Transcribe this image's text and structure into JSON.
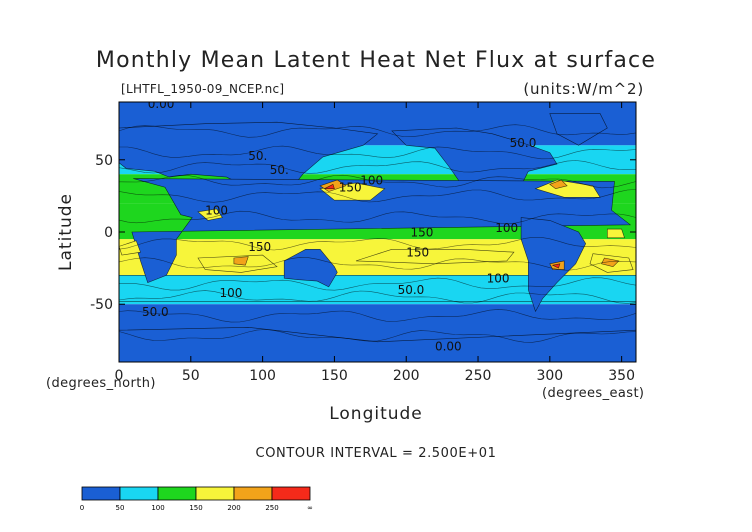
{
  "chart_data": {
    "type": "heatmap",
    "title": "Monthly Mean Latent Heat Net Flux at surface",
    "subtitle": "[LHTFL_1950-09_NCEP.nc]",
    "units": "(units:W/m^2)",
    "xlabel": "Longitude",
    "ylabel": "Latitude",
    "x_unit_label": "(degrees_east)",
    "y_unit_label": "(degrees_north)",
    "xlim": [
      0,
      360
    ],
    "ylim": [
      -90,
      90
    ],
    "x_ticks": [
      0,
      50,
      100,
      150,
      200,
      250,
      300,
      350
    ],
    "y_ticks": [
      -50,
      0,
      50
    ],
    "contour_interval": "CONTOUR INTERVAL = 2.500E+01",
    "contour_labels": [
      {
        "text": "0.00",
        "x": 20,
        "y": 86
      },
      {
        "text": "50.",
        "x": 90,
        "y": 50
      },
      {
        "text": "50.",
        "x": 105,
        "y": 40
      },
      {
        "text": "100",
        "x": 168,
        "y": 33
      },
      {
        "text": "150",
        "x": 153,
        "y": 28
      },
      {
        "text": "100",
        "x": 60,
        "y": 12
      },
      {
        "text": "150",
        "x": 90,
        "y": -13
      },
      {
        "text": "150",
        "x": 200,
        "y": -17
      },
      {
        "text": "150",
        "x": 203,
        "y": -3
      },
      {
        "text": "100",
        "x": 262,
        "y": 0
      },
      {
        "text": "100",
        "x": 256,
        "y": -35
      },
      {
        "text": "100",
        "x": 70,
        "y": -45
      },
      {
        "text": "50.0",
        "x": 194,
        "y": -43
      },
      {
        "text": "50.0",
        "x": 16,
        "y": -58
      },
      {
        "text": "50.0",
        "x": 272,
        "y": 59
      },
      {
        "text": "0.00",
        "x": 220,
        "y": -82
      }
    ],
    "colorbar": {
      "levels": [
        "0",
        "50",
        "100",
        "150",
        "200",
        "250",
        "∞"
      ],
      "colors": [
        "#1a5fd4",
        "#19d6f2",
        "#1ed61e",
        "#f7f53a",
        "#f2a31a",
        "#f52a1a"
      ]
    },
    "zonal_bands": [
      {
        "lat": [
          60,
          90
        ],
        "level": 0
      },
      {
        "lat": [
          40,
          60
        ],
        "level": 1
      },
      {
        "lat": [
          20,
          40
        ],
        "level": 2
      },
      {
        "lat": [
          -5,
          20
        ],
        "level": 2
      },
      {
        "lat": [
          -30,
          -5
        ],
        "level": 3
      },
      {
        "lat": [
          -50,
          -30
        ],
        "level": 1
      },
      {
        "lat": [
          -90,
          -50
        ],
        "level": 0
      }
    ]
  }
}
